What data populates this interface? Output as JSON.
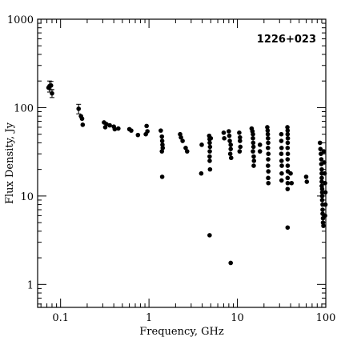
{
  "chart_data": {
    "type": "scatter",
    "title": "",
    "annotation": "1226+023",
    "xlabel": "Frequency, GHz",
    "ylabel": "Flux Density, Jy",
    "x_scale": "log",
    "y_scale": "log",
    "xlim": [
      0.055,
      100
    ],
    "ylim": [
      0.55,
      1000
    ],
    "x_tick_labels": [
      "0.1",
      "1",
      "10",
      "100"
    ],
    "y_tick_labels": [
      "1",
      "10",
      "100",
      "1000"
    ],
    "grid": false,
    "legend": "none",
    "marker_color": "#000000",
    "points": [
      {
        "x": 0.075,
        "y": 175,
        "err": 25
      },
      {
        "x": 0.078,
        "y": 178,
        "err": 20
      },
      {
        "x": 0.08,
        "y": 145,
        "err": 15
      },
      {
        "x": 0.073,
        "y": 168
      },
      {
        "x": 0.16,
        "y": 97,
        "err": 12
      },
      {
        "x": 0.17,
        "y": 80
      },
      {
        "x": 0.178,
        "y": 64
      },
      {
        "x": 0.175,
        "y": 75
      },
      {
        "x": 0.31,
        "y": 68
      },
      {
        "x": 0.32,
        "y": 60
      },
      {
        "x": 0.33,
        "y": 65
      },
      {
        "x": 0.36,
        "y": 63
      },
      {
        "x": 0.41,
        "y": 57
      },
      {
        "x": 0.45,
        "y": 58
      },
      {
        "x": 0.4,
        "y": 61
      },
      {
        "x": 0.6,
        "y": 57
      },
      {
        "x": 0.63,
        "y": 55
      },
      {
        "x": 0.75,
        "y": 49
      },
      {
        "x": 0.94,
        "y": 62
      },
      {
        "x": 0.96,
        "y": 54
      },
      {
        "x": 0.92,
        "y": 50
      },
      {
        "x": 1.36,
        "y": 55
      },
      {
        "x": 1.4,
        "y": 47
      },
      {
        "x": 1.41,
        "y": 42
      },
      {
        "x": 1.42,
        "y": 38
      },
      {
        "x": 1.43,
        "y": 35
      },
      {
        "x": 1.4,
        "y": 32
      },
      {
        "x": 1.41,
        "y": 16.5
      },
      {
        "x": 2.25,
        "y": 50
      },
      {
        "x": 2.3,
        "y": 46
      },
      {
        "x": 2.4,
        "y": 42
      },
      {
        "x": 2.6,
        "y": 35
      },
      {
        "x": 2.7,
        "y": 32
      },
      {
        "x": 3.9,
        "y": 18
      },
      {
        "x": 3.95,
        "y": 38
      },
      {
        "x": 4.8,
        "y": 48
      },
      {
        "x": 4.85,
        "y": 44
      },
      {
        "x": 4.86,
        "y": 40
      },
      {
        "x": 4.9,
        "y": 36
      },
      {
        "x": 4.87,
        "y": 32
      },
      {
        "x": 4.85,
        "y": 28
      },
      {
        "x": 4.86,
        "y": 25
      },
      {
        "x": 4.9,
        "y": 20
      },
      {
        "x": 5.0,
        "y": 45
      },
      {
        "x": 4.85,
        "y": 3.6
      },
      {
        "x": 7.0,
        "y": 52
      },
      {
        "x": 7.1,
        "y": 45
      },
      {
        "x": 8.0,
        "y": 54
      },
      {
        "x": 8.1,
        "y": 48
      },
      {
        "x": 8.2,
        "y": 42
      },
      {
        "x": 8.4,
        "y": 38
      },
      {
        "x": 8.4,
        "y": 34
      },
      {
        "x": 8.3,
        "y": 30
      },
      {
        "x": 8.5,
        "y": 27
      },
      {
        "x": 8.4,
        "y": 1.75
      },
      {
        "x": 10.5,
        "y": 52
      },
      {
        "x": 10.7,
        "y": 46
      },
      {
        "x": 10.7,
        "y": 42
      },
      {
        "x": 10.8,
        "y": 36
      },
      {
        "x": 10.6,
        "y": 32
      },
      {
        "x": 14.5,
        "y": 58
      },
      {
        "x": 14.8,
        "y": 54
      },
      {
        "x": 15.0,
        "y": 50
      },
      {
        "x": 15.0,
        "y": 45
      },
      {
        "x": 15.1,
        "y": 40
      },
      {
        "x": 15.2,
        "y": 36
      },
      {
        "x": 15.0,
        "y": 32
      },
      {
        "x": 15.3,
        "y": 28
      },
      {
        "x": 15.4,
        "y": 25
      },
      {
        "x": 15.3,
        "y": 22
      },
      {
        "x": 18,
        "y": 38
      },
      {
        "x": 18,
        "y": 32
      },
      {
        "x": 21.8,
        "y": 60
      },
      {
        "x": 22.0,
        "y": 55
      },
      {
        "x": 22.1,
        "y": 50
      },
      {
        "x": 22.2,
        "y": 45
      },
      {
        "x": 22.3,
        "y": 40
      },
      {
        "x": 22.2,
        "y": 35
      },
      {
        "x": 22.4,
        "y": 30
      },
      {
        "x": 22.3,
        "y": 26
      },
      {
        "x": 22.2,
        "y": 22
      },
      {
        "x": 22.4,
        "y": 19
      },
      {
        "x": 22.3,
        "y": 16
      },
      {
        "x": 22.4,
        "y": 14
      },
      {
        "x": 31.4,
        "y": 50
      },
      {
        "x": 31.4,
        "y": 42
      },
      {
        "x": 31.6,
        "y": 35
      },
      {
        "x": 31.4,
        "y": 30
      },
      {
        "x": 31.6,
        "y": 25
      },
      {
        "x": 31.8,
        "y": 22
      },
      {
        "x": 31.7,
        "y": 18
      },
      {
        "x": 31.6,
        "y": 15
      },
      {
        "x": 36.8,
        "y": 60
      },
      {
        "x": 37.0,
        "y": 55
      },
      {
        "x": 37.0,
        "y": 50
      },
      {
        "x": 37.2,
        "y": 45
      },
      {
        "x": 37.1,
        "y": 40
      },
      {
        "x": 37.0,
        "y": 35
      },
      {
        "x": 37.2,
        "y": 30
      },
      {
        "x": 37.0,
        "y": 26
      },
      {
        "x": 37.1,
        "y": 22
      },
      {
        "x": 37.2,
        "y": 19
      },
      {
        "x": 37.0,
        "y": 16
      },
      {
        "x": 37.1,
        "y": 14
      },
      {
        "x": 37.0,
        "y": 12
      },
      {
        "x": 37.0,
        "y": 4.4
      },
      {
        "x": 40,
        "y": 18
      },
      {
        "x": 41,
        "y": 14
      },
      {
        "x": 60,
        "y": 16.5
      },
      {
        "x": 61,
        "y": 14.5
      },
      {
        "x": 86,
        "y": 40
      },
      {
        "x": 87,
        "y": 34
      },
      {
        "x": 88,
        "y": 30
      },
      {
        "x": 89,
        "y": 26
      },
      {
        "x": 89,
        "y": 23
      },
      {
        "x": 90,
        "y": 20
      },
      {
        "x": 90,
        "y": 18
      },
      {
        "x": 90,
        "y": 16
      },
      {
        "x": 90,
        "y": 14.5
      },
      {
        "x": 90,
        "y": 13
      },
      {
        "x": 91,
        "y": 12
      },
      {
        "x": 91,
        "y": 11
      },
      {
        "x": 91,
        "y": 10
      },
      {
        "x": 91,
        "y": 9
      },
      {
        "x": 92,
        "y": 8
      },
      {
        "x": 92,
        "y": 7
      },
      {
        "x": 92,
        "y": 6.3
      },
      {
        "x": 93,
        "y": 5.6
      },
      {
        "x": 93,
        "y": 5.0
      },
      {
        "x": 94,
        "y": 4.6
      },
      {
        "x": 95,
        "y": 32
      },
      {
        "x": 96,
        "y": 24
      },
      {
        "x": 97,
        "y": 18
      },
      {
        "x": 98,
        "y": 14
      },
      {
        "x": 99,
        "y": 11
      },
      {
        "x": 99,
        "y": 8
      },
      {
        "x": 98,
        "y": 6
      }
    ]
  }
}
